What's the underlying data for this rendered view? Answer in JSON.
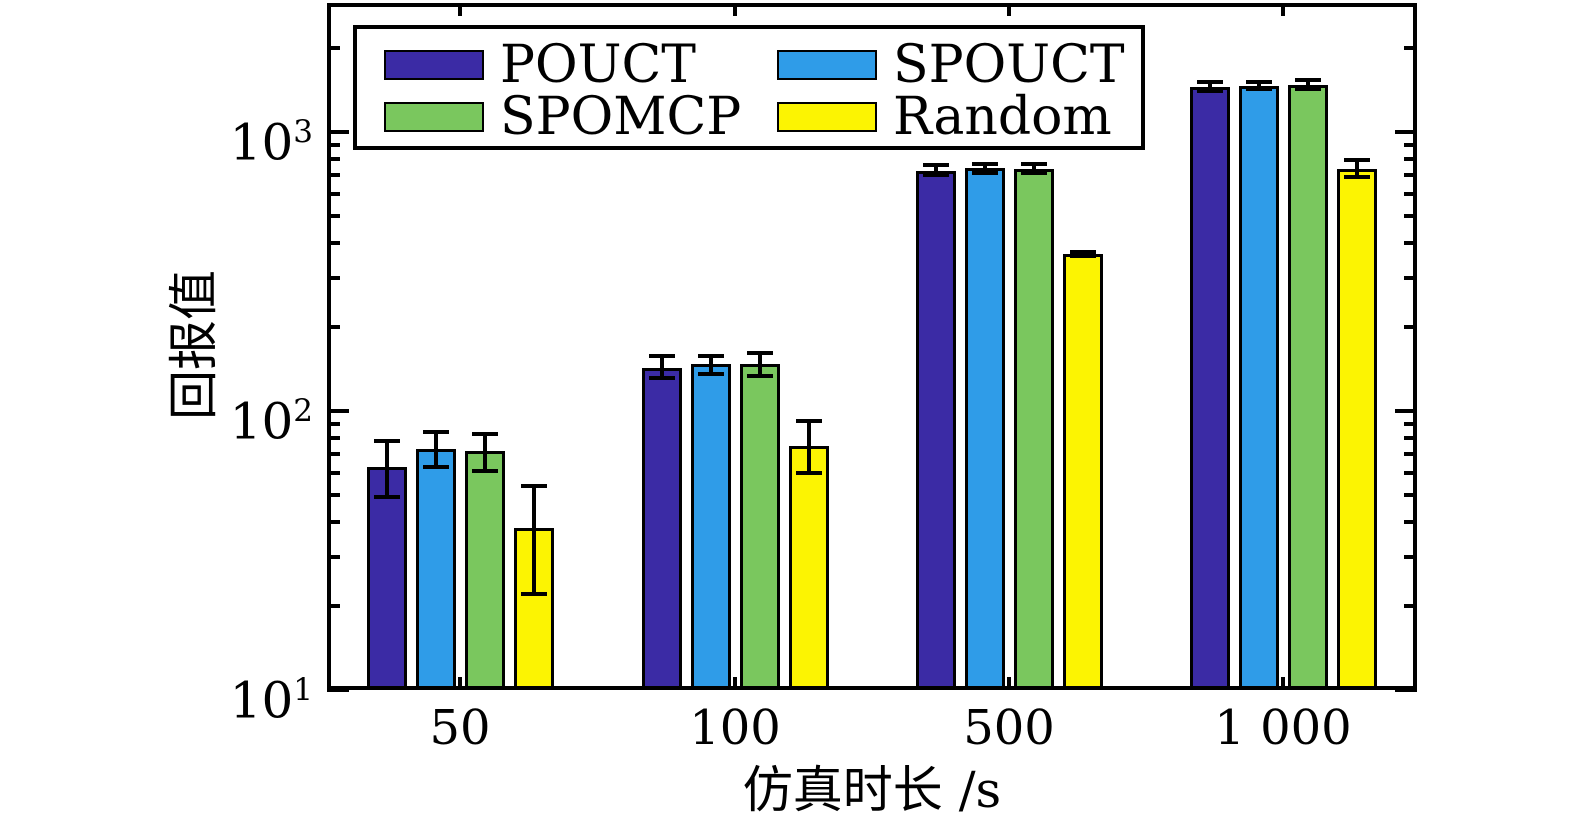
{
  "axes": {
    "x_title": "仿真时长 /s",
    "y_title": "回报值",
    "x_tick_labels": [
      "50",
      "100",
      "500",
      "1 000"
    ],
    "y_tick_exponents": [
      1,
      2,
      3
    ],
    "y_scale": "log10"
  },
  "chart_data": {
    "type": "bar",
    "title": "",
    "xlabel": "仿真时长 /s",
    "ylabel": "回报值",
    "categories": [
      "50",
      "100",
      "500",
      "1 000"
    ],
    "y_axis": {
      "scale": "log",
      "min": 10,
      "max": 2900,
      "major_ticks": [
        10,
        100,
        1000
      ],
      "minor_ticks": "2-9 per decade"
    },
    "grid": "off",
    "legend_position": "inside-top-left",
    "legend_columns": 2,
    "series": [
      {
        "name": "POUCT",
        "color": "#3B2BA5",
        "values": [
          63,
          143,
          725,
          1450
        ],
        "error_low": [
          49,
          131,
          700,
          1400
        ],
        "error_high": [
          78,
          157,
          762,
          1513
        ]
      },
      {
        "name": "SPOUCT",
        "color": "#2F9CE8",
        "values": [
          73,
          147,
          740,
          1460
        ],
        "error_low": [
          63,
          136,
          715,
          1425
        ],
        "error_high": [
          84,
          158,
          771,
          1513
        ]
      },
      {
        "name": "SPOMCP",
        "color": "#7AC75E",
        "values": [
          72,
          147,
          735,
          1470
        ],
        "error_low": [
          61,
          133,
          712,
          1425
        ],
        "error_high": [
          83,
          161,
          771,
          1540
        ]
      },
      {
        "name": "Random",
        "color": "#FCF402",
        "values": [
          38,
          75,
          365,
          735
        ],
        "error_low": [
          22,
          60,
          358,
          690
        ],
        "error_high": [
          54,
          92,
          372,
          795
        ]
      }
    ]
  }
}
